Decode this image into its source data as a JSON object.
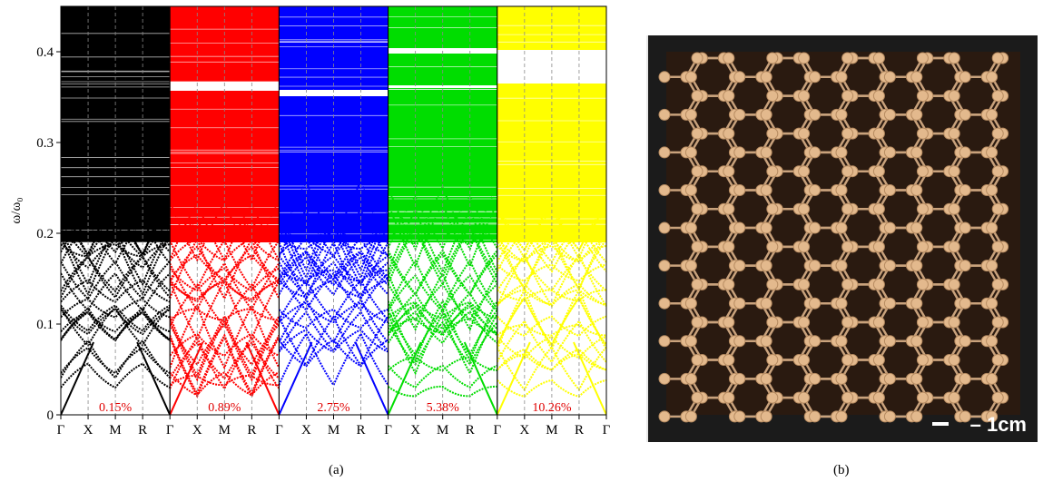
{
  "figure": {
    "caption_a": "(a)",
    "caption_b": "(b)",
    "scale_bar_label": "– 1cm"
  },
  "chart_data": {
    "type": "scatter",
    "ylabel": "ω/ω₀",
    "ylim": [
      0,
      0.45
    ],
    "yticks": [
      "0",
      "0.1",
      "0.2",
      "0.3",
      "0.4"
    ],
    "ytick_values": [
      0,
      0.1,
      0.2,
      0.3,
      0.4
    ],
    "xtick_labels": [
      "Γ",
      "X",
      "M",
      "R",
      "Γ"
    ],
    "grid": true,
    "panels": [
      {
        "label": "0.15%",
        "color": "#000000",
        "gaps": []
      },
      {
        "label": "0.89%",
        "color": "#ff0000",
        "gaps": [
          [
            0.357,
            0.367
          ]
        ]
      },
      {
        "label": "2.75%",
        "color": "#0000ff",
        "gaps": [
          [
            0.351,
            0.358
          ]
        ]
      },
      {
        "label": "5.38%",
        "color": "#00dd00",
        "gaps": [
          [
            0.36,
            0.363
          ],
          [
            0.398,
            0.404
          ]
        ]
      },
      {
        "label": "10.26%",
        "color": "#ffff00",
        "gaps": [
          [
            0.365,
            0.402
          ]
        ]
      }
    ]
  }
}
